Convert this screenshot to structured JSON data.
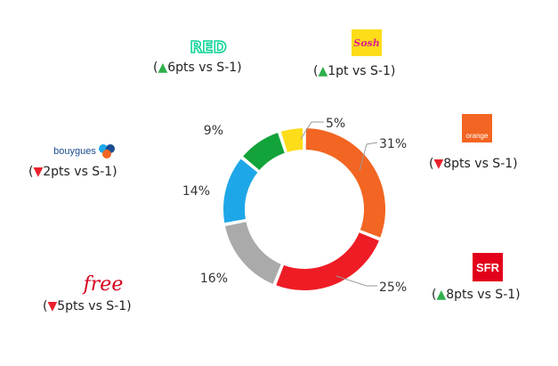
{
  "colors": {
    "up": "#2eb04b",
    "down": "#e8202a"
  },
  "brands": {
    "red": {
      "logo_text": "RED",
      "change": "6pts vs S-1",
      "direction": "up"
    },
    "sosh": {
      "logo_text": "Sosh",
      "change": "1pt vs S-1",
      "direction": "up"
    },
    "orange": {
      "logo_text": "orange",
      "change": "8pts vs S-1",
      "direction": "down"
    },
    "bouygues": {
      "logo_text": "bouygues",
      "change": "2pts vs S-1",
      "direction": "down"
    },
    "free": {
      "logo_text": "free",
      "change": "5pts vs S-1",
      "direction": "down"
    },
    "sfr": {
      "logo_text": "SFR",
      "change": "8pts vs S-1",
      "direction": "up"
    }
  },
  "chart_data": {
    "type": "pie",
    "donut": true,
    "start": "top, clockwise",
    "categories": [
      "Orange",
      "SFR",
      "Free",
      "Bouygues",
      "RED",
      "Sosh"
    ],
    "values": [
      31,
      25,
      16,
      14,
      9,
      5
    ],
    "labels": [
      "31%",
      "25%",
      "16%",
      "14%",
      "9%",
      "5%"
    ],
    "colors": [
      "#f26522",
      "#ee1c25",
      "#aaaaaa",
      "#1ea7e8",
      "#12a33a",
      "#fddc1a"
    ]
  }
}
